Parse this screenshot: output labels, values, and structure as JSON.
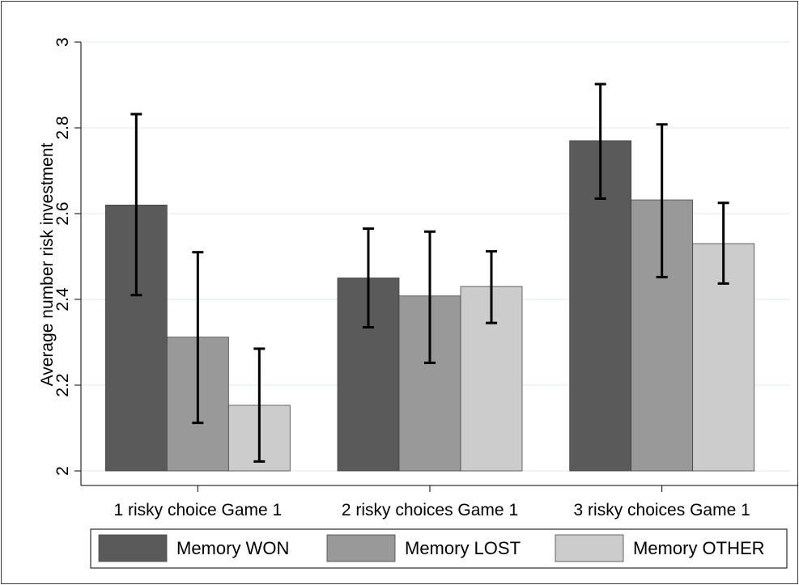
{
  "chart_data": {
    "type": "bar",
    "ylabel": "Average number risk investment",
    "ylim": [
      2,
      3
    ],
    "yticks": [
      2,
      2.2,
      2.4,
      2.6,
      2.8,
      3
    ],
    "ytick_labels": [
      "2",
      "2.2",
      "2.4",
      "2.6",
      "2.8",
      "3"
    ],
    "categories": [
      "1 risky choice Game 1",
      "2 risky choices Game 1",
      "3 risky choices Game 1"
    ],
    "series": [
      {
        "name": "Memory WON",
        "color": "#5a5a5a",
        "values": [
          2.62,
          2.45,
          2.77
        ],
        "ci_low": [
          2.41,
          2.335,
          2.635
        ],
        "ci_high": [
          2.832,
          2.565,
          2.902
        ]
      },
      {
        "name": "Memory LOST",
        "color": "#999999",
        "values": [
          2.312,
          2.408,
          2.632
        ],
        "ci_low": [
          2.112,
          2.252,
          2.452
        ],
        "ci_high": [
          2.51,
          2.558,
          2.808
        ]
      },
      {
        "name": "Memory OTHER",
        "color": "#cccccc",
        "values": [
          2.153,
          2.43,
          2.53
        ],
        "ci_low": [
          2.022,
          2.345,
          2.437
        ],
        "ci_high": [
          2.285,
          2.512,
          2.625
        ]
      }
    ],
    "grid": true,
    "legend_position": "bottom"
  }
}
